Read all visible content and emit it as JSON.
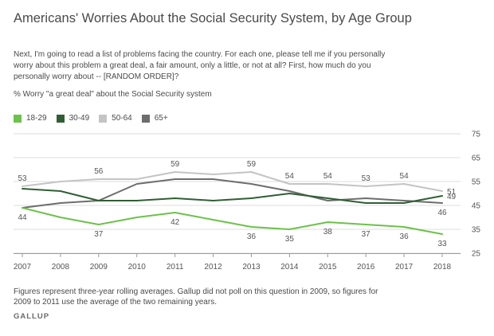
{
  "header": {
    "title": "Americans' Worries About the Social Security System, by Age Group",
    "question": "Next, I'm going to read a list of problems facing the country. For each one, please tell me if you personally worry about this problem a great deal, a fair amount, only a little, or not at all? First, how much do you personally worry about -- [RANDOM ORDER]?",
    "measure": "% Worry \"a great deal\" about the Social Security system"
  },
  "footer": {
    "note": "Figures represent three-year rolling averages. Gallup did not poll on this question in 2009, so figures for 2009 to 2011 use the average of the two remaining years.",
    "brand": "GALLUP"
  },
  "chart_data": {
    "type": "line",
    "x": [
      2007,
      2007.5,
      2008,
      2008.5,
      2009,
      2009.5,
      2010,
      2010.5,
      2011,
      2011.5,
      2012,
      2012.5,
      2013,
      2013.5,
      2014,
      2014.5,
      2015,
      2015.5,
      2016,
      2016.5,
      2017,
      2017.5,
      2018
    ],
    "x_ticks": [
      "2007",
      "2008",
      "2009",
      "2010",
      "2011",
      "2012",
      "2013",
      "2014",
      "2015",
      "2016",
      "2017",
      "2018"
    ],
    "y_ticks": [
      "25",
      "35",
      "45",
      "55",
      "65",
      "75"
    ],
    "ylim": [
      25,
      75
    ],
    "xlim": [
      2007,
      2018
    ],
    "grid": true,
    "legend_position": "top-left",
    "series": [
      {
        "name": "18-29",
        "color": "#6cc24a",
        "values": [
          44,
          42,
          40,
          38.5,
          37,
          38.5,
          40,
          41,
          42,
          40.5,
          39,
          37.5,
          36,
          35.5,
          35,
          36.5,
          38,
          37.5,
          37,
          36.5,
          36,
          34.5,
          33
        ]
      },
      {
        "name": "30-49",
        "color": "#2f5f33",
        "values": [
          52,
          51.5,
          51,
          49,
          47,
          47,
          47,
          47.5,
          48,
          47.5,
          47,
          47.5,
          48,
          49,
          50,
          49,
          48,
          47,
          46,
          46,
          46,
          47.5,
          49
        ]
      },
      {
        "name": "50-64",
        "color": "#c4c4c4",
        "values": [
          53,
          54,
          55,
          55.5,
          56,
          56,
          56,
          57.5,
          59,
          58.5,
          58,
          58.5,
          59,
          56.5,
          54,
          54,
          54,
          53.5,
          53,
          53.5,
          54,
          52.5,
          51
        ]
      },
      {
        "name": "65+",
        "color": "#6d6d6d",
        "values": [
          44,
          45,
          46,
          46.5,
          47,
          50.5,
          54,
          55,
          56,
          56,
          56,
          55,
          54,
          52.5,
          51,
          49,
          47,
          47.5,
          48,
          47.5,
          47,
          46.5,
          46
        ]
      }
    ],
    "data_labels": [
      {
        "series": "50-64",
        "x": 2007,
        "text": "53",
        "pos": "above"
      },
      {
        "series": "18-29",
        "x": 2007,
        "text": "44",
        "pos": "below"
      },
      {
        "series": "50-64",
        "x": 2009,
        "text": "56",
        "pos": "above"
      },
      {
        "series": "18-29",
        "x": 2009,
        "text": "37",
        "pos": "below"
      },
      {
        "series": "50-64",
        "x": 2011,
        "text": "59",
        "pos": "above"
      },
      {
        "series": "18-29",
        "x": 2011,
        "text": "42",
        "pos": "below"
      },
      {
        "series": "50-64",
        "x": 2013,
        "text": "59",
        "pos": "above"
      },
      {
        "series": "18-29",
        "x": 2013,
        "text": "36",
        "pos": "below"
      },
      {
        "series": "50-64",
        "x": 2014,
        "text": "54",
        "pos": "above"
      },
      {
        "series": "18-29",
        "x": 2014,
        "text": "35",
        "pos": "below"
      },
      {
        "series": "50-64",
        "x": 2015,
        "text": "54",
        "pos": "above"
      },
      {
        "series": "18-29",
        "x": 2015,
        "text": "38",
        "pos": "below"
      },
      {
        "series": "50-64",
        "x": 2016,
        "text": "53",
        "pos": "above"
      },
      {
        "series": "18-29",
        "x": 2016,
        "text": "37",
        "pos": "below"
      },
      {
        "series": "50-64",
        "x": 2017,
        "text": "54",
        "pos": "above"
      },
      {
        "series": "18-29",
        "x": 2017,
        "text": "36",
        "pos": "below"
      },
      {
        "series": "50-64",
        "x": 2018,
        "text": "51",
        "pos": "right"
      },
      {
        "series": "30-49",
        "x": 2018,
        "text": "49",
        "pos": "right"
      },
      {
        "series": "65+",
        "x": 2018,
        "text": "46",
        "pos": "below"
      },
      {
        "series": "18-29",
        "x": 2018,
        "text": "33",
        "pos": "below"
      }
    ]
  }
}
